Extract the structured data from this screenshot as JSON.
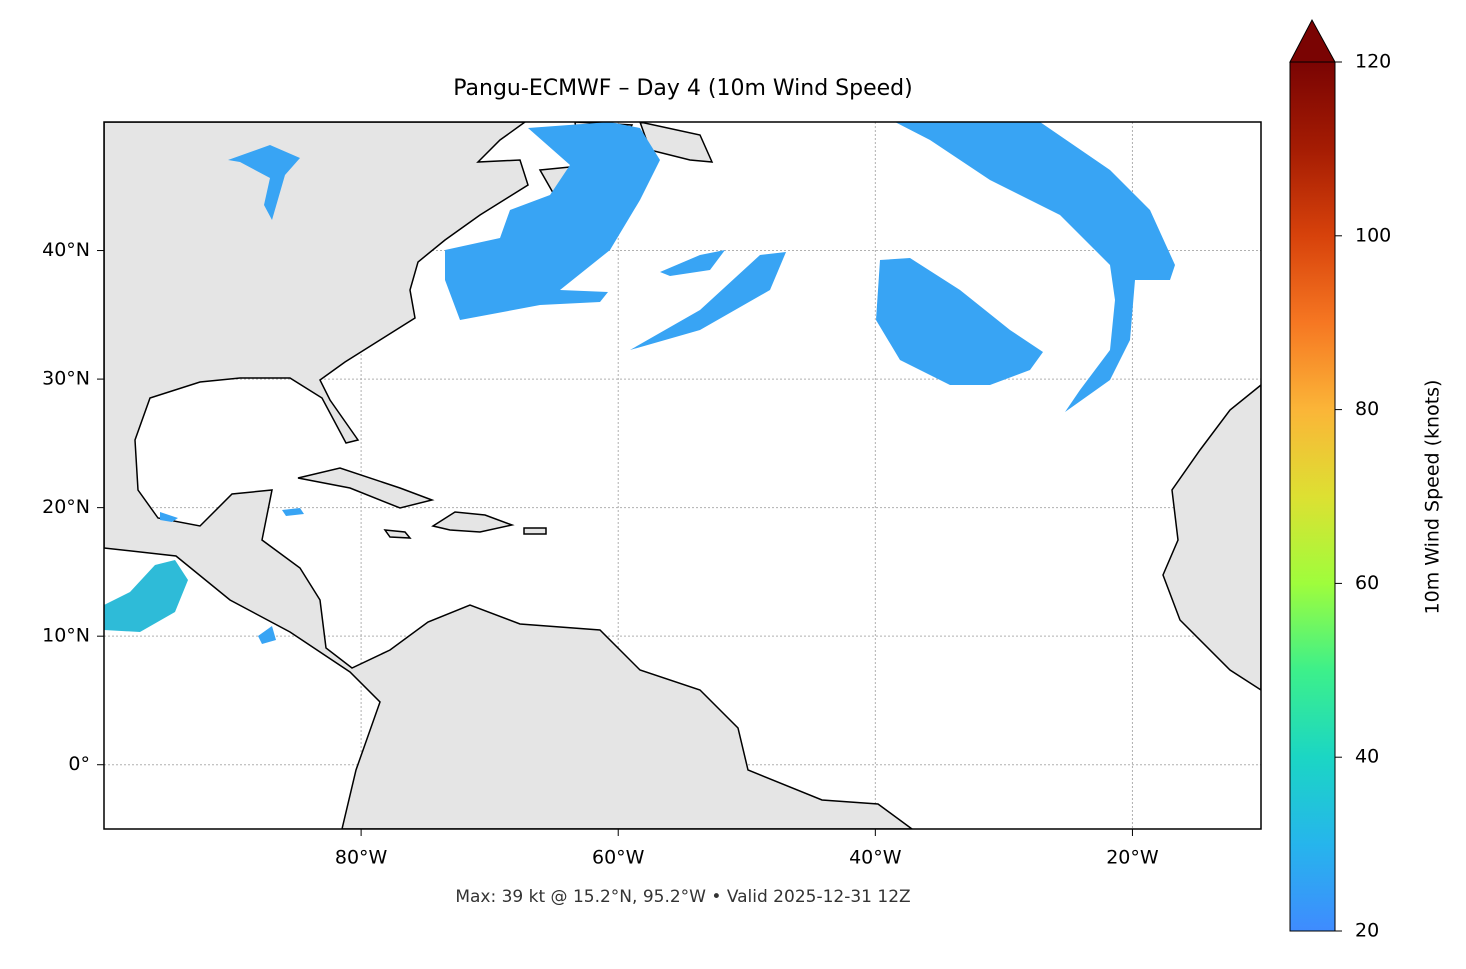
{
  "map": {
    "title": "Pangu-ECMWF – Day 4 (10m Wind Speed)",
    "xlim": [
      -100,
      -10
    ],
    "ylim": [
      -5,
      50
    ],
    "xticks": [
      {
        "value": -80,
        "label": "80°W"
      },
      {
        "value": -60,
        "label": "60°W"
      },
      {
        "value": -40,
        "label": "40°W"
      },
      {
        "value": -20,
        "label": "20°W"
      }
    ],
    "yticks": [
      {
        "value": 0,
        "label": "0°"
      },
      {
        "value": 10,
        "label": "10°N"
      },
      {
        "value": 20,
        "label": "20°N"
      },
      {
        "value": 30,
        "label": "30°N"
      },
      {
        "value": 40,
        "label": "40°N"
      }
    ],
    "grid": true,
    "colorbar": {
      "label": "10m Wind Speed (knots)",
      "lim": [
        20,
        120
      ],
      "ticks": [
        20,
        40,
        60,
        80,
        100,
        120
      ]
    },
    "annotation": "Max: 39 kt @ 15.2°N, 95.2°W • Valid 2025-12-31 12Z"
  }
}
